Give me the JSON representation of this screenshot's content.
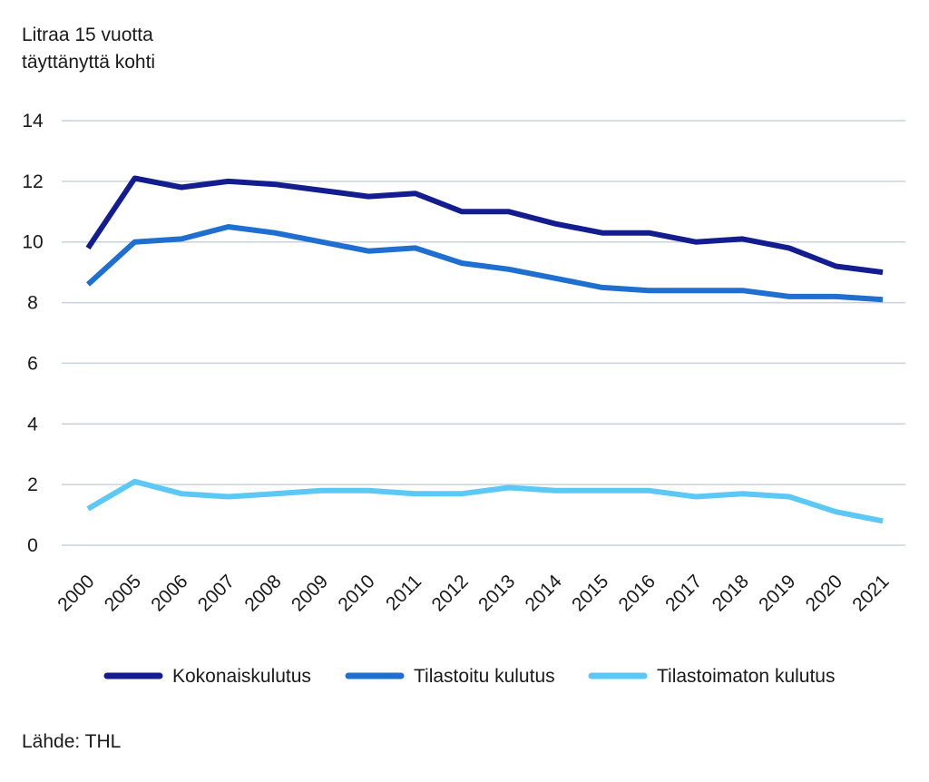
{
  "chart_data": {
    "type": "line",
    "ylabel_lines": [
      "Litraa 15 vuotta",
      "täyttänyttä kohti"
    ],
    "categories": [
      "2000",
      "2005",
      "2006",
      "2007",
      "2008",
      "2009",
      "2010",
      "2011",
      "2012",
      "2013",
      "2014",
      "2015",
      "2016",
      "2017",
      "2018",
      "2019",
      "2020",
      "2021"
    ],
    "ylim": [
      0,
      14
    ],
    "yticks": [
      0,
      2,
      4,
      6,
      8,
      10,
      12,
      14
    ],
    "grid": true,
    "legend_position": "bottom",
    "series": [
      {
        "name": "Kokonaiskulutus",
        "color": "#141d8f",
        "values": [
          9.8,
          12.1,
          11.8,
          12.0,
          11.9,
          11.7,
          11.5,
          11.6,
          11.0,
          11.0,
          10.6,
          10.3,
          10.3,
          10.0,
          10.1,
          9.8,
          9.2,
          9.0
        ]
      },
      {
        "name": "Tilastoitu kulutus",
        "color": "#1f6fd1",
        "values": [
          8.6,
          10.0,
          10.1,
          10.5,
          10.3,
          10.0,
          9.7,
          9.8,
          9.3,
          9.1,
          8.8,
          8.5,
          8.4,
          8.4,
          8.4,
          8.2,
          8.2,
          8.1
        ]
      },
      {
        "name": "Tilastoimaton kulutus",
        "color": "#5cc8f5",
        "values": [
          1.2,
          2.1,
          1.7,
          1.6,
          1.7,
          1.8,
          1.8,
          1.7,
          1.7,
          1.9,
          1.8,
          1.8,
          1.8,
          1.6,
          1.7,
          1.6,
          1.1,
          0.8
        ]
      }
    ],
    "source": "Lähde: THL"
  }
}
